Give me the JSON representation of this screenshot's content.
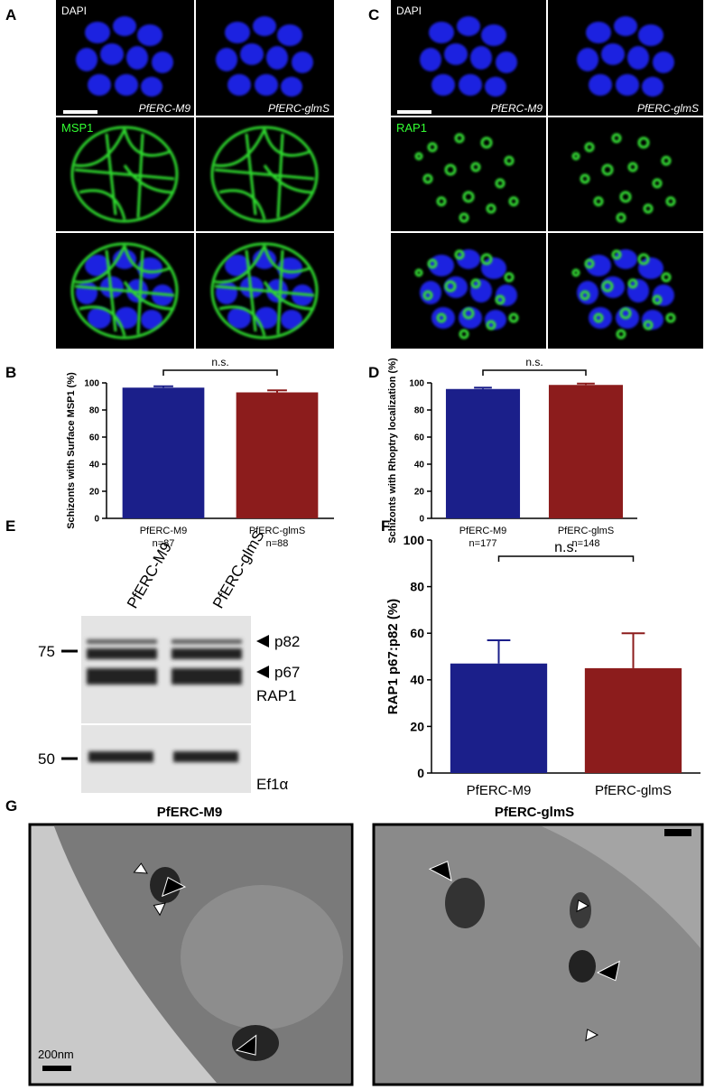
{
  "panel_labels": [
    "A",
    "B",
    "C",
    "D",
    "E",
    "F",
    "G"
  ],
  "panel_a": {
    "channels": [
      "DAPI",
      "MSP1"
    ],
    "samples": [
      "PfERC-M9",
      "PfERC-glmS"
    ]
  },
  "panel_c": {
    "channels": [
      "DAPI",
      "RAP1"
    ],
    "samples": [
      "PfERC-M9",
      "PfERC-glmS"
    ]
  },
  "chart_data": [
    {
      "type": "bar",
      "ylabel": "Schizonts with Surface MSP1 (%)",
      "categories": [
        "PfERC-M9",
        "PfERC-glmS"
      ],
      "sample_sizes": [
        "n=87",
        "n=88"
      ],
      "values": [
        96.5,
        93
      ],
      "errors": [
        1,
        1.5
      ],
      "colors": [
        "#1b1f8a",
        "#8c1c1c"
      ],
      "ylim": [
        0,
        100
      ],
      "yticks": [
        0,
        20,
        40,
        60,
        80,
        100
      ],
      "annotation": "n.s."
    },
    {
      "type": "bar",
      "ylabel": "Schizonts with Rhoptry localization (%)",
      "categories": [
        "PfERC-M9",
        "PfERC-glmS"
      ],
      "sample_sizes": [
        "n=177",
        "n=148"
      ],
      "values": [
        95.5,
        98.5
      ],
      "errors": [
        1,
        1
      ],
      "colors": [
        "#1b1f8a",
        "#8c1c1c"
      ],
      "ylim": [
        0,
        100
      ],
      "yticks": [
        0,
        20,
        40,
        60,
        80,
        100
      ],
      "annotation": "n.s."
    },
    {
      "type": "bar",
      "ylabel": "RAP1 p67:p82  (%)",
      "categories": [
        "PfERC-M9",
        "PfERC-glmS"
      ],
      "values": [
        47,
        45
      ],
      "errors": [
        10,
        15
      ],
      "colors": [
        "#1b1f8a",
        "#8c1c1c"
      ],
      "ylim": [
        0,
        100
      ],
      "yticks": [
        0,
        20,
        40,
        60,
        80,
        100
      ],
      "annotation": "n.s."
    }
  ],
  "blot": {
    "lanes": [
      "PfERC-M9",
      "PfERC-glmS"
    ],
    "markers": [
      75,
      50
    ],
    "bands": [
      "p82",
      "p67"
    ],
    "proteins": [
      "RAP1",
      "Ef1α"
    ]
  },
  "em": {
    "titles": [
      "PfERC-M9",
      "PfERC-glmS"
    ],
    "scale_bar": "200nm"
  }
}
